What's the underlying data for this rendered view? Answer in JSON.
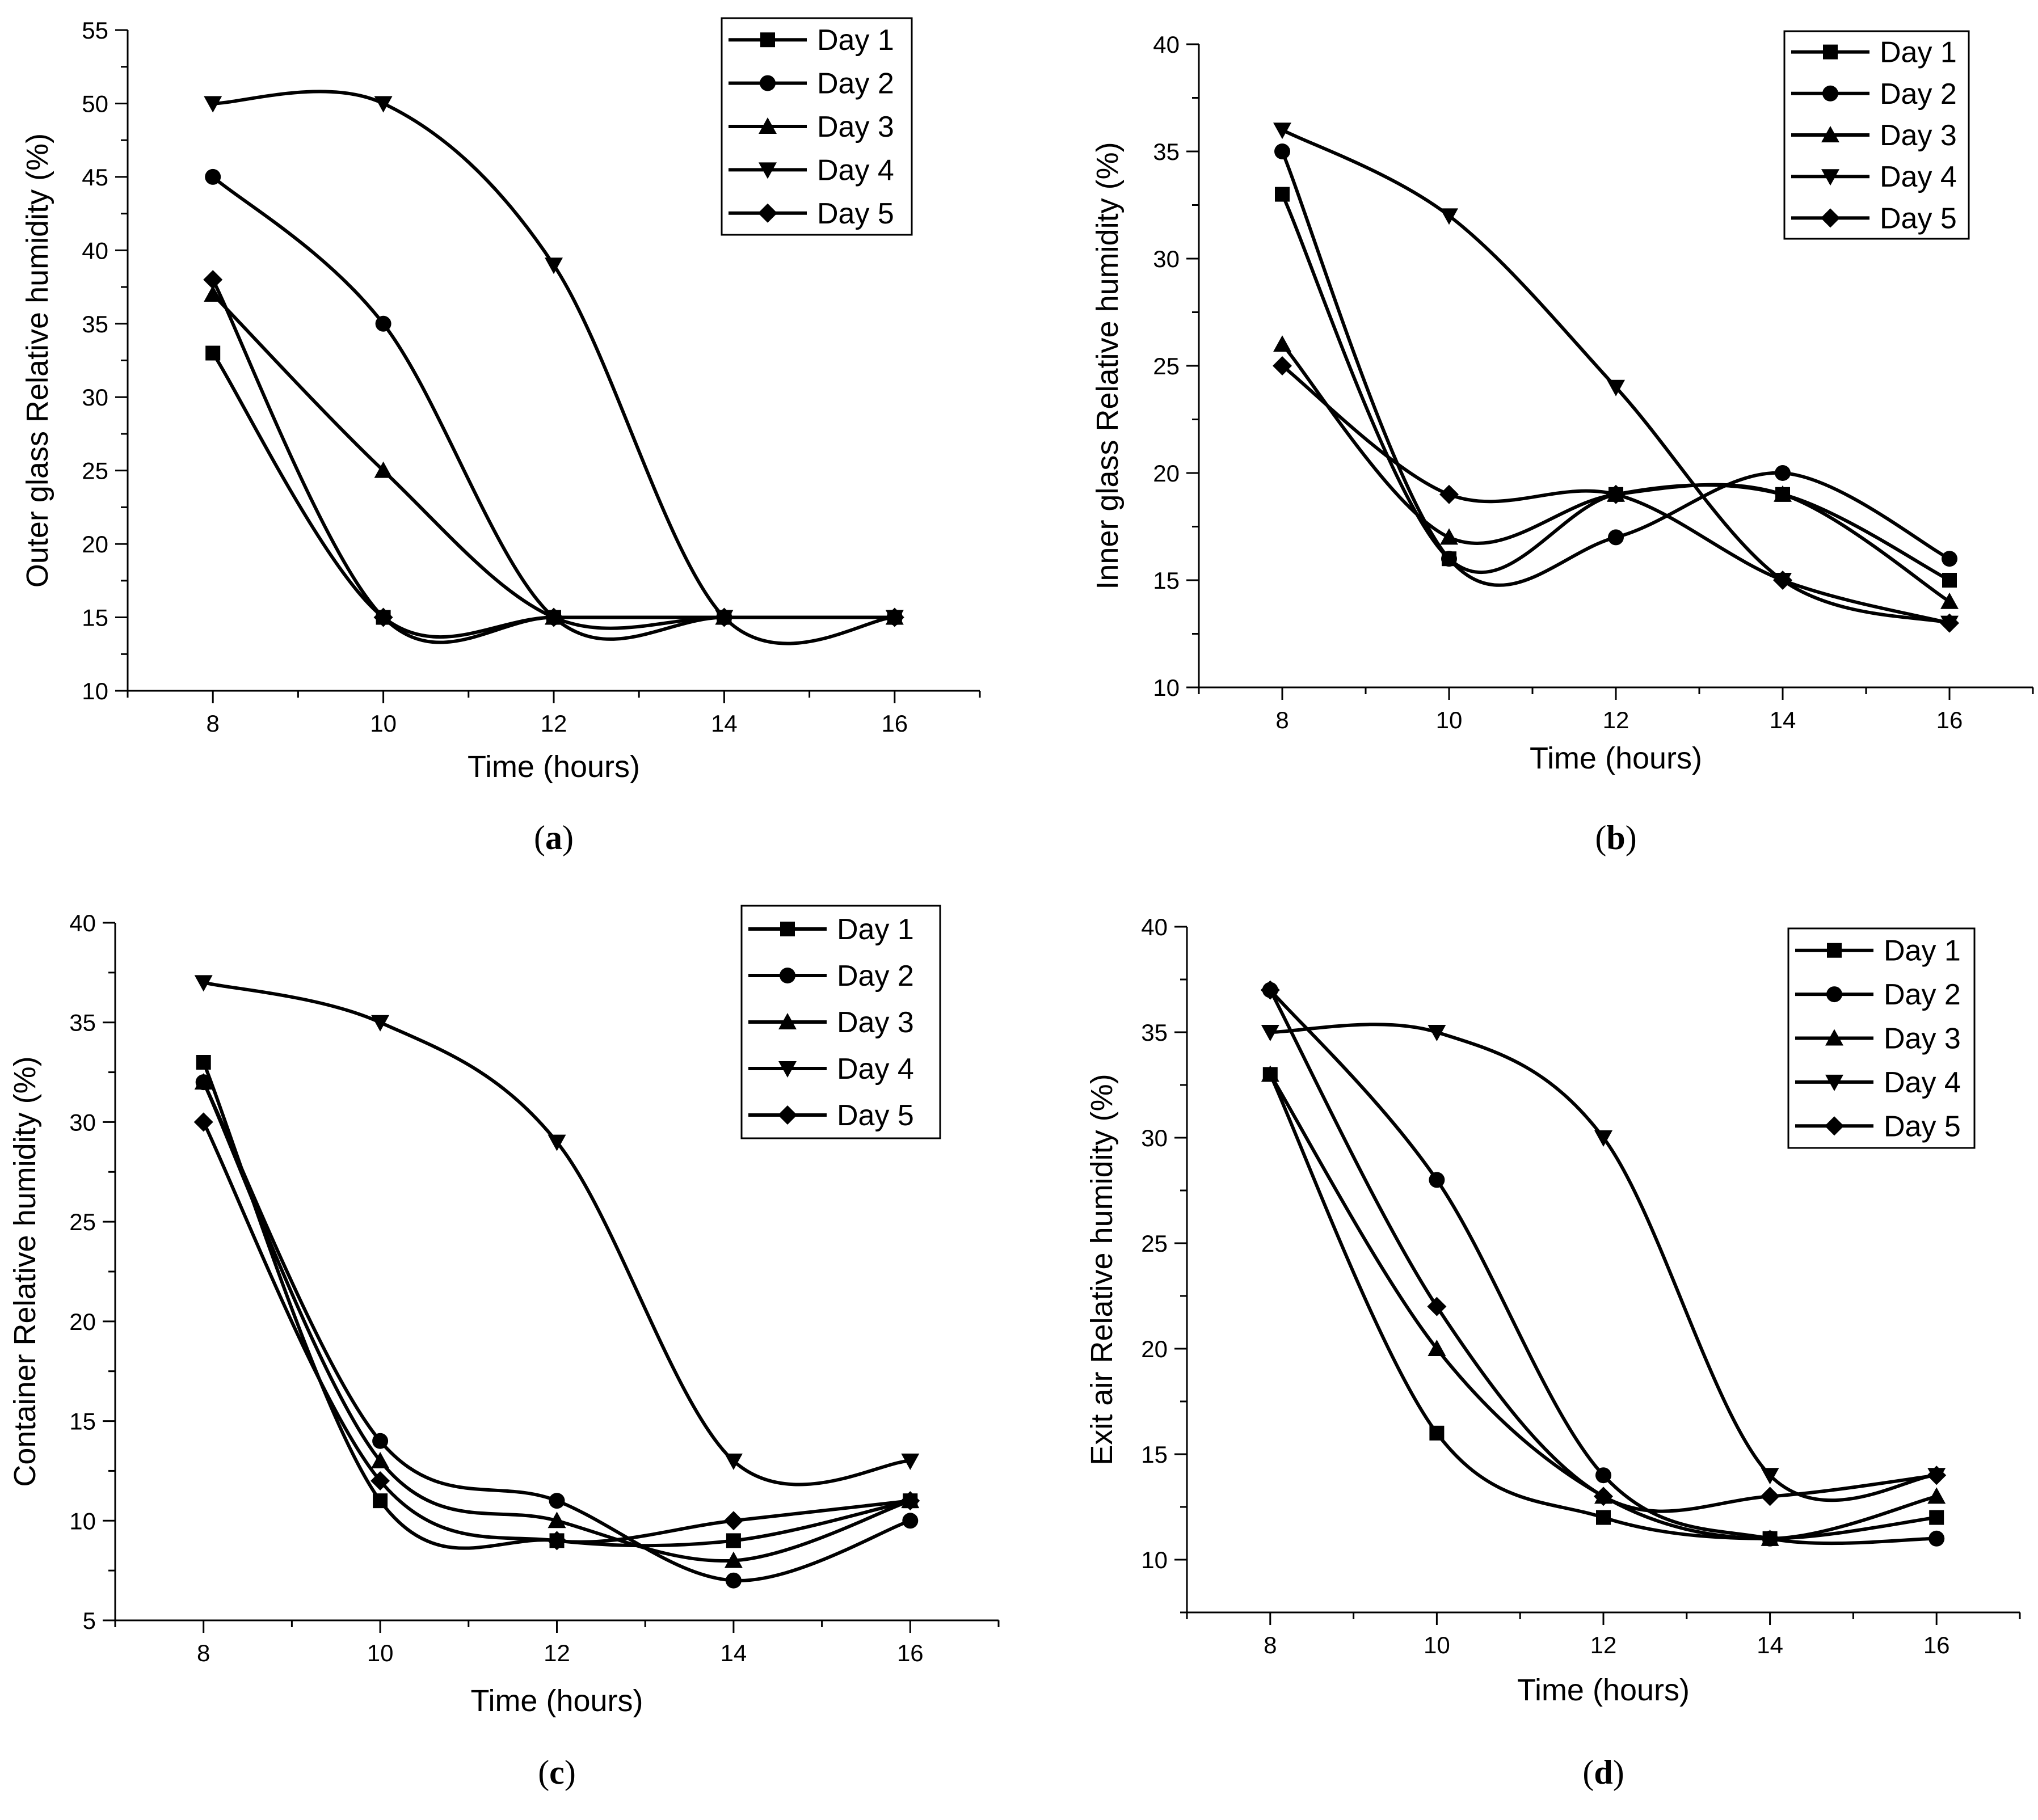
{
  "figure": {
    "panels": [
      "a",
      "b",
      "c",
      "d"
    ]
  },
  "chart_data": [
    {
      "id": "a",
      "type": "line",
      "panel_label": "(a)",
      "title": "",
      "xlabel": "Time (hours)",
      "ylabel": "Outer glass Relative humidity (%)",
      "xlim": [
        7,
        17
      ],
      "ylim": [
        10,
        55
      ],
      "x_ticks": [
        8,
        10,
        12,
        14,
        16
      ],
      "y_ticks": [
        10,
        15,
        20,
        25,
        30,
        35,
        40,
        45,
        50,
        55
      ],
      "legend_position": "top-right",
      "x": [
        8,
        10,
        12,
        14,
        16
      ],
      "series": [
        {
          "name": "Day 1",
          "marker": "square",
          "values": [
            33,
            15,
            15,
            15,
            15
          ]
        },
        {
          "name": "Day 2",
          "marker": "circle",
          "values": [
            45,
            35,
            15,
            15,
            15
          ]
        },
        {
          "name": "Day 3",
          "marker": "triangle-up",
          "values": [
            37,
            25,
            15,
            15,
            15
          ]
        },
        {
          "name": "Day 4",
          "marker": "triangle-down",
          "values": [
            50,
            50,
            39,
            15,
            15
          ]
        },
        {
          "name": "Day 5",
          "marker": "diamond",
          "values": [
            38,
            15,
            15,
            15,
            15
          ]
        }
      ]
    },
    {
      "id": "b",
      "type": "line",
      "panel_label": "(b)",
      "title": "",
      "xlabel": "Time (hours)",
      "ylabel": "Inner glass Relative humidity (%)",
      "xlim": [
        7,
        17
      ],
      "ylim": [
        10,
        40
      ],
      "x_ticks": [
        8,
        10,
        12,
        14,
        16
      ],
      "y_ticks": [
        10,
        15,
        20,
        25,
        30,
        35,
        40
      ],
      "legend_position": "top-right",
      "x": [
        8,
        10,
        12,
        14,
        16
      ],
      "series": [
        {
          "name": "Day 1",
          "marker": "square",
          "values": [
            33,
            16,
            19,
            19,
            15
          ]
        },
        {
          "name": "Day 2",
          "marker": "circle",
          "values": [
            35,
            16,
            17,
            20,
            16
          ]
        },
        {
          "name": "Day 3",
          "marker": "triangle-up",
          "values": [
            26,
            17,
            19,
            19,
            14
          ]
        },
        {
          "name": "Day 4",
          "marker": "triangle-down",
          "values": [
            36,
            32,
            24,
            15,
            13
          ]
        },
        {
          "name": "Day 5",
          "marker": "diamond",
          "values": [
            25,
            19,
            19,
            15,
            13
          ]
        }
      ]
    },
    {
      "id": "c",
      "type": "line",
      "panel_label": "(c)",
      "title": "",
      "xlabel": "Time (hours)",
      "ylabel": "Container Relative humidity (%)",
      "xlim": [
        7,
        17
      ],
      "ylim": [
        5,
        40
      ],
      "x_ticks": [
        8,
        10,
        12,
        14,
        16
      ],
      "y_ticks": [
        5,
        10,
        15,
        20,
        25,
        30,
        35,
        40
      ],
      "legend_position": "top-right",
      "x": [
        8,
        10,
        12,
        14,
        16
      ],
      "series": [
        {
          "name": "Day 1",
          "marker": "square",
          "values": [
            33,
            11,
            9,
            9,
            11
          ]
        },
        {
          "name": "Day 2",
          "marker": "circle",
          "values": [
            32,
            14,
            11,
            7,
            10
          ]
        },
        {
          "name": "Day 3",
          "marker": "triangle-up",
          "values": [
            32,
            13,
            10,
            8,
            11
          ]
        },
        {
          "name": "Day 4",
          "marker": "triangle-down",
          "values": [
            37,
            35,
            29,
            13,
            13
          ]
        },
        {
          "name": "Day 5",
          "marker": "diamond",
          "values": [
            30,
            12,
            9,
            10,
            11
          ]
        }
      ]
    },
    {
      "id": "d",
      "type": "line",
      "panel_label": "(d)",
      "title": "",
      "xlabel": "Time (hours)",
      "ylabel": "Exit air Relative humidity (%)",
      "xlim": [
        7,
        17
      ],
      "ylim": [
        7.5,
        40
      ],
      "x_ticks": [
        8,
        10,
        12,
        14,
        16
      ],
      "y_ticks": [
        10,
        15,
        20,
        25,
        30,
        35,
        40
      ],
      "legend_position": "top-right",
      "x": [
        8,
        10,
        12,
        14,
        16
      ],
      "series": [
        {
          "name": "Day 1",
          "marker": "square",
          "values": [
            33,
            16,
            12,
            11,
            12
          ]
        },
        {
          "name": "Day 2",
          "marker": "circle",
          "values": [
            37,
            28,
            14,
            11,
            11
          ]
        },
        {
          "name": "Day 3",
          "marker": "triangle-up",
          "values": [
            33,
            20,
            13,
            11,
            13
          ]
        },
        {
          "name": "Day 4",
          "marker": "triangle-down",
          "values": [
            35,
            35,
            30,
            14,
            14
          ]
        },
        {
          "name": "Day 5",
          "marker": "diamond",
          "values": [
            37,
            22,
            13,
            13,
            14
          ]
        }
      ]
    }
  ]
}
